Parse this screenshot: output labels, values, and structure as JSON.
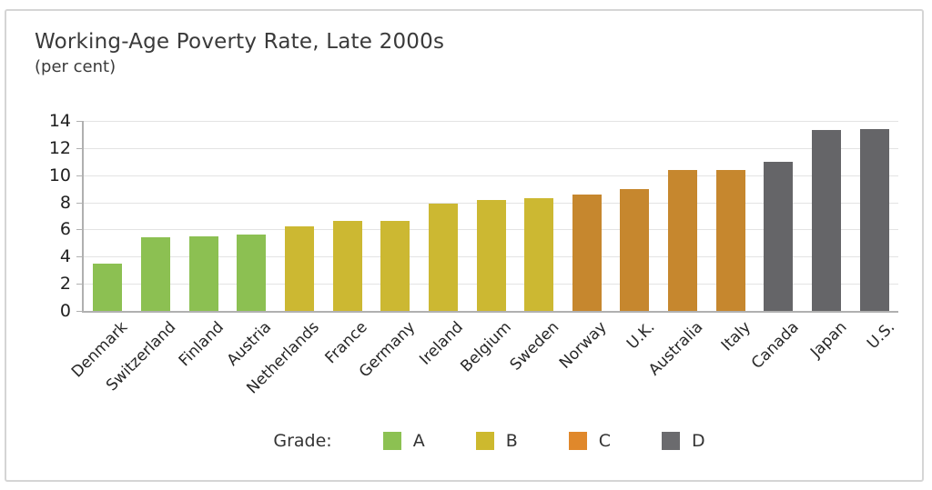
{
  "header": {
    "title": "Working-Age Poverty Rate, Late 2000s",
    "subtitle": "(per cent)"
  },
  "chart_data": {
    "type": "bar",
    "title": "Working-Age Poverty Rate, Late 2000s",
    "subtitle": "(per cent)",
    "xlabel": "",
    "ylabel": "per cent",
    "categories": [
      "Denmark",
      "Switzerland",
      "Finland",
      "Austria",
      "Netherlands",
      "France",
      "Germany",
      "Ireland",
      "Belgium",
      "Sweden",
      "Norway",
      "U.K.",
      "Australia",
      "Italy",
      "Canada",
      "Japan",
      "U.S."
    ],
    "values": [
      3.5,
      5.4,
      5.5,
      5.6,
      6.2,
      6.6,
      6.6,
      7.9,
      8.2,
      8.3,
      8.6,
      9.0,
      10.4,
      10.4,
      11.0,
      13.3,
      13.4
    ],
    "grades": [
      "A",
      "A",
      "A",
      "A",
      "B",
      "B",
      "B",
      "B",
      "B",
      "B",
      "C",
      "C",
      "C",
      "C",
      "D",
      "D",
      "D"
    ],
    "bar_colors": {
      "A": "#8cc052",
      "B": "#ccb832",
      "C": "#c6872e",
      "D": "#656568"
    },
    "ylim": [
      0,
      14
    ],
    "yticks": [
      0,
      2,
      4,
      6,
      8,
      10,
      12,
      14
    ],
    "grid": true,
    "legend": {
      "label": "Grade:",
      "position": "bottom",
      "entries": [
        {
          "label": "A",
          "color": "#8cc152"
        },
        {
          "label": "B",
          "color": "#cdb92e"
        },
        {
          "label": "C",
          "color": "#e0882b"
        },
        {
          "label": "D",
          "color": "#6b6b6e"
        }
      ]
    }
  }
}
